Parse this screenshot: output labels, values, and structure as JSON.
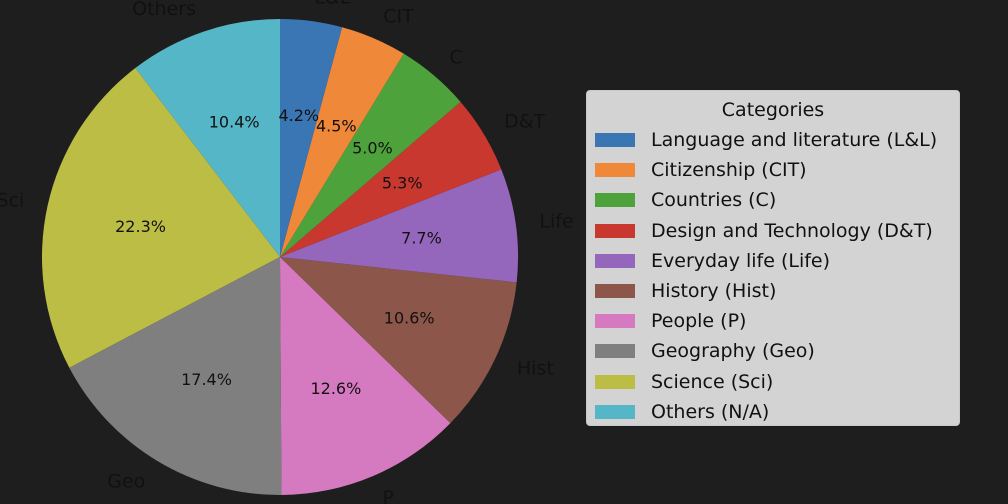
{
  "chart_data": {
    "type": "pie",
    "start_angle_deg": 90,
    "direction": "counterclockwise",
    "slices": [
      {
        "label": "Others",
        "value": 10.4,
        "pct_text": "10.4%",
        "color": "#55b6c8"
      },
      {
        "label": "Sci",
        "value": 22.3,
        "pct_text": "22.3%",
        "color": "#bcbd45"
      },
      {
        "label": "Geo",
        "value": 17.4,
        "pct_text": "17.4%",
        "color": "#7f7f7f"
      },
      {
        "label": "P",
        "value": 12.6,
        "pct_text": "12.6%",
        "color": "#d57ac0"
      },
      {
        "label": "Hist",
        "value": 10.6,
        "pct_text": "10.6%",
        "color": "#8c564b"
      },
      {
        "label": "Life",
        "value": 7.7,
        "pct_text": "7.7%",
        "color": "#9467bd"
      },
      {
        "label": "D&T",
        "value": 5.3,
        "pct_text": "5.3%",
        "color": "#c9382e"
      },
      {
        "label": "C",
        "value": 5.0,
        "pct_text": "5.0%",
        "color": "#4ea23b"
      },
      {
        "label": "CIT",
        "value": 4.5,
        "pct_text": "4.5%",
        "color": "#f0883a"
      },
      {
        "label": "L&L",
        "value": 4.2,
        "pct_text": "4.2%",
        "color": "#3a76b3"
      }
    ],
    "legend": {
      "title": "Categories",
      "placement": "right",
      "entries": [
        {
          "label": "Language and literature (L&L)",
          "color": "#3a76b3"
        },
        {
          "label": "Citizenship (CIT)",
          "color": "#f0883a"
        },
        {
          "label": "Countries (C)",
          "color": "#4ea23b"
        },
        {
          "label": "Design and Technology (D&T)",
          "color": "#c9382e"
        },
        {
          "label": "Everyday life (Life)",
          "color": "#9467bd"
        },
        {
          "label": "History (Hist)",
          "color": "#8c564b"
        },
        {
          "label": "People (P)",
          "color": "#d57ac0"
        },
        {
          "label": "Geography (Geo)",
          "color": "#7f7f7f"
        },
        {
          "label": "Science (Sci)",
          "color": "#bcbd45"
        },
        {
          "label": "Others (N/A)",
          "color": "#55b6c8"
        }
      ]
    }
  }
}
